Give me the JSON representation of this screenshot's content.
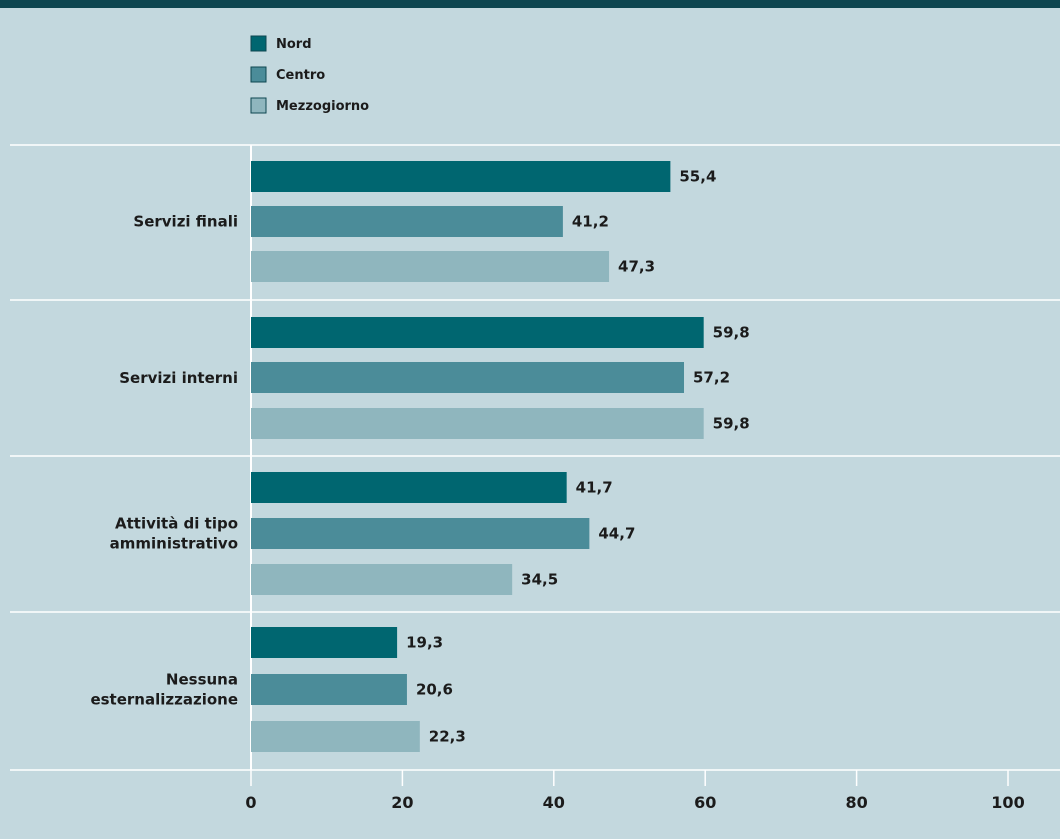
{
  "colors": {
    "background": "#c3d8de",
    "top_band": "#0e4650",
    "grid": "#ffffff",
    "Nord": "#006670",
    "Centro": "#4b8c99",
    "Mezzogiorno": "#8fb6be"
  },
  "chart_data": {
    "type": "bar",
    "orientation": "horizontal",
    "categories": [
      [
        "Servizi finali"
      ],
      [
        "Servizi interni"
      ],
      [
        "Attività di tipo",
        "amministrativo"
      ],
      [
        "Nessuna",
        "esternalizzazione"
      ]
    ],
    "series": [
      {
        "name": "Nord",
        "values": [
          55.4,
          59.8,
          41.7,
          19.3
        ]
      },
      {
        "name": "Centro",
        "values": [
          41.2,
          57.2,
          44.7,
          20.6
        ]
      },
      {
        "name": "Mezzogiorno",
        "values": [
          47.3,
          59.8,
          34.5,
          22.3
        ]
      }
    ],
    "value_labels": [
      [
        "55,4",
        "59,8",
        "41,7",
        "19,3"
      ],
      [
        "41,2",
        "57,2",
        "44,7",
        "20,6"
      ],
      [
        "47,3",
        "59,8",
        "34,5",
        "22,3"
      ]
    ],
    "xlim": [
      0,
      100
    ],
    "xticks": [
      0,
      20,
      40,
      60,
      80,
      100
    ],
    "xtick_labels": [
      "0",
      "20",
      "40",
      "60",
      "80",
      "100"
    ],
    "legend_position": "top-left",
    "grid": "horizontal separators between categories"
  }
}
